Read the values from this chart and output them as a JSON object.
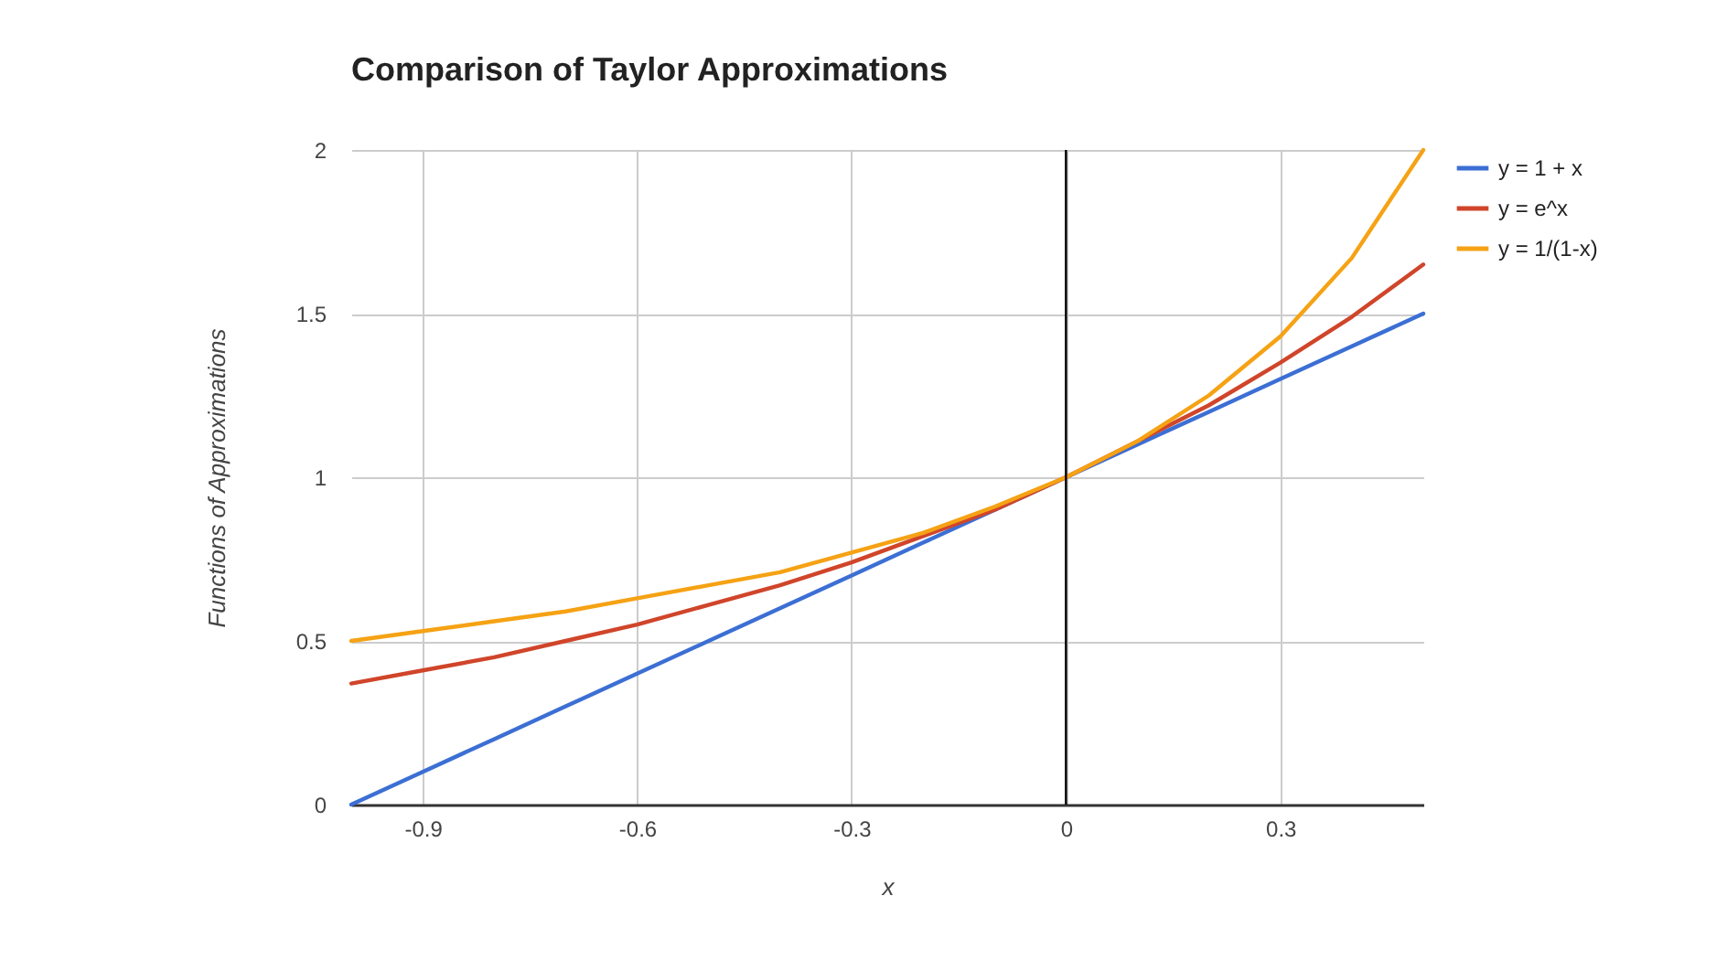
{
  "chart_data": {
    "type": "line",
    "title": "Comparison of Taylor Approximations",
    "xlabel": "x",
    "ylabel": "Functions of Approximations",
    "x": [
      -1,
      -0.9,
      -0.8,
      -0.7,
      -0.6,
      -0.5,
      -0.4,
      -0.3,
      -0.2,
      -0.1,
      0,
      0.1,
      0.2,
      0.3,
      0.4,
      0.5
    ],
    "series": [
      {
        "name": "y = 1 + x",
        "color": "#3c6fd4",
        "values": [
          0,
          0.1,
          0.2,
          0.3,
          0.4,
          0.5,
          0.6,
          0.7,
          0.8,
          0.9,
          1,
          1.1,
          1.2,
          1.3,
          1.4,
          1.5
        ]
      },
      {
        "name": "y = e^x",
        "color": "#d0452a",
        "values": [
          0.37,
          0.41,
          0.45,
          0.5,
          0.55,
          0.61,
          0.67,
          0.74,
          0.82,
          0.9,
          1,
          1.11,
          1.22,
          1.35,
          1.49,
          1.65
        ]
      },
      {
        "name": "y = 1/(1-x)",
        "color": "#f5a214",
        "values": [
          0.5,
          0.53,
          0.56,
          0.59,
          0.63,
          0.67,
          0.71,
          0.77,
          0.83,
          0.91,
          1,
          1.11,
          1.25,
          1.43,
          1.67,
          2
        ]
      }
    ],
    "xlim": [
      -1,
      0.5
    ],
    "xticks": [
      -0.9,
      -0.6,
      -0.3,
      0,
      0.3
    ],
    "ylim": [
      0,
      2
    ],
    "yticks": [
      0,
      0.5,
      1,
      1.5,
      2
    ],
    "ref_lines": [
      {
        "axis": "x",
        "value": 0,
        "color": "#000000"
      }
    ],
    "grid": true,
    "legend": "top right"
  }
}
